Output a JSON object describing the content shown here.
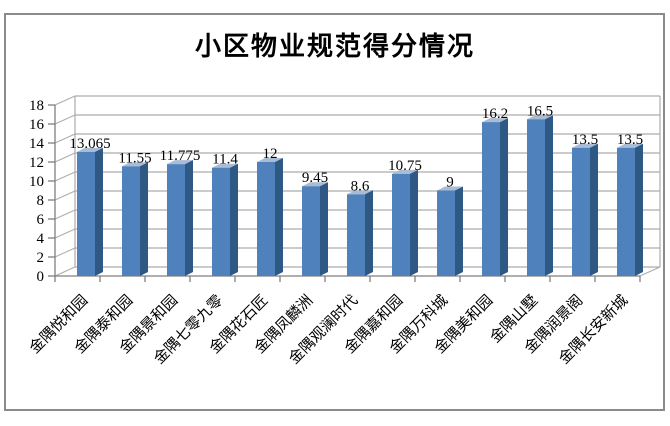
{
  "chart_data": {
    "type": "bar",
    "style_3d": true,
    "title": "小区物业规范得分情况",
    "categories": [
      "金隅悦和园",
      "金隅泰和园",
      "金隅景和园",
      "金隅七零九零",
      "金隅花石匠",
      "金隅凤麟洲",
      "金隅观澜时代",
      "金隅嘉和园",
      "金隅万科城",
      "金隅美和园",
      "金隅山墅",
      "金隅润景阁",
      "金隅长安新城"
    ],
    "values": [
      13.065,
      11.55,
      11.775,
      11.4,
      12,
      9.45,
      8.6,
      10.75,
      9,
      16.2,
      16.5,
      13.5,
      13.5
    ],
    "xlabel": "",
    "ylabel": "",
    "ylim": [
      0,
      18
    ],
    "ytick_step": 2,
    "grid": true,
    "legend": "none",
    "colors": {
      "bar_front": "#4F81BD",
      "bar_side": "#2E5985",
      "bar_top": "#A9BCD4",
      "gridline": "#ACACAC",
      "axis": "#7F7F7F",
      "text": "#000000",
      "frame_border": "#8A8A8A",
      "background": "#FFFFFF"
    }
  }
}
